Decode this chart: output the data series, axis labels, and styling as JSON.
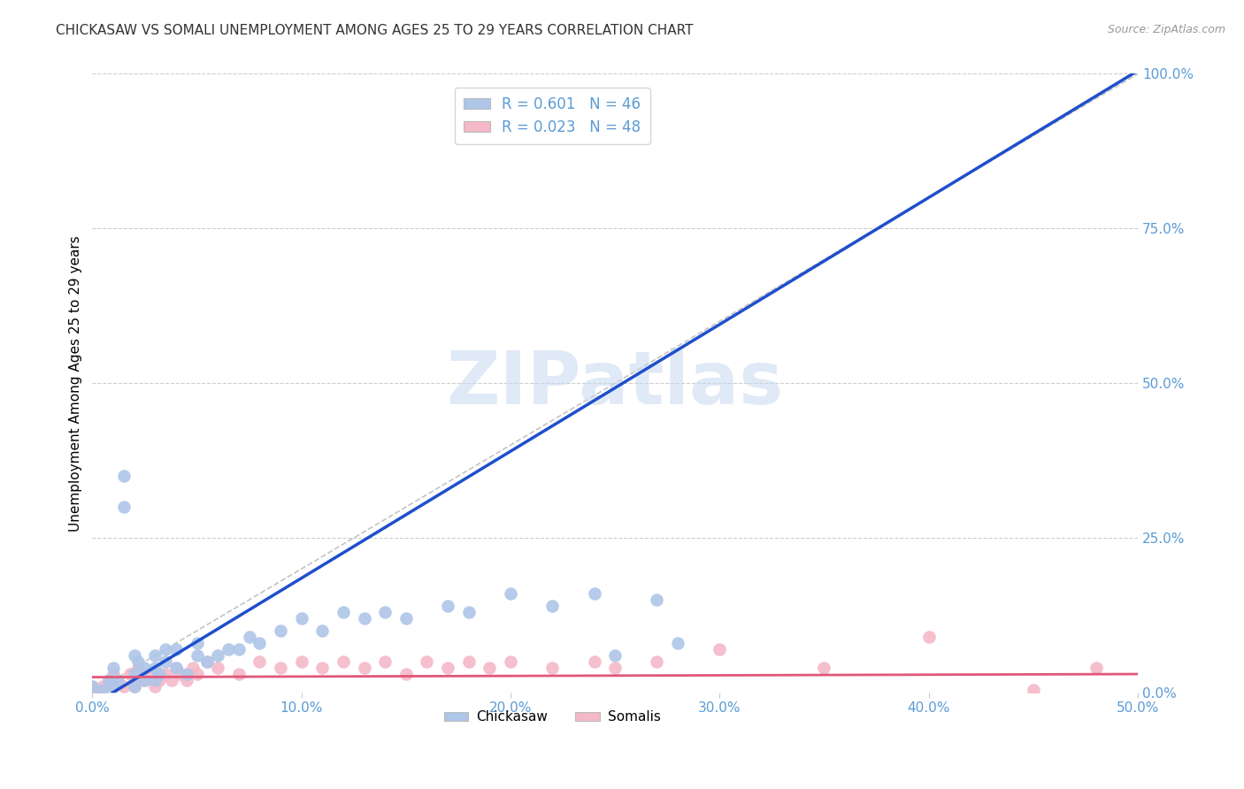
{
  "title": "CHICKASAW VS SOMALI UNEMPLOYMENT AMONG AGES 25 TO 29 YEARS CORRELATION CHART",
  "source": "Source: ZipAtlas.com",
  "tick_color": "#5b9bd5",
  "ylabel": "Unemployment Among Ages 25 to 29 years",
  "xlim": [
    0.0,
    0.5
  ],
  "ylim": [
    0.0,
    1.0
  ],
  "grid_color": "#cccccc",
  "background_color": "#ffffff",
  "diagonal_color": "#b0b0b0",
  "chickasaw_color": "#aec6e8",
  "somali_color": "#f4b8c8",
  "chickasaw_line_color": "#1f4fcc",
  "somali_line_color": "#e05878",
  "chickasaw_R": 0.601,
  "somali_R": 0.023,
  "chickasaw_N": 46,
  "somali_N": 48,
  "legend_label1": "Chickasaw",
  "legend_label2": "Somalis",
  "watermark_text": "ZIPatlas",
  "chickasaw_x": [
    0.0,
    0.005,
    0.008,
    0.01,
    0.01,
    0.012,
    0.015,
    0.015,
    0.02,
    0.02,
    0.02,
    0.022,
    0.025,
    0.025,
    0.03,
    0.03,
    0.03,
    0.032,
    0.035,
    0.035,
    0.04,
    0.04,
    0.045,
    0.05,
    0.05,
    0.055,
    0.06,
    0.065,
    0.07,
    0.075,
    0.08,
    0.09,
    0.1,
    0.11,
    0.12,
    0.13,
    0.14,
    0.15,
    0.17,
    0.18,
    0.2,
    0.22,
    0.24,
    0.25,
    0.27,
    0.28
  ],
  "chickasaw_y": [
    0.01,
    0.005,
    0.02,
    0.01,
    0.04,
    0.02,
    0.35,
    0.3,
    0.01,
    0.03,
    0.06,
    0.05,
    0.02,
    0.04,
    0.02,
    0.04,
    0.06,
    0.03,
    0.05,
    0.07,
    0.04,
    0.07,
    0.03,
    0.06,
    0.08,
    0.05,
    0.06,
    0.07,
    0.07,
    0.09,
    0.08,
    0.1,
    0.12,
    0.1,
    0.13,
    0.12,
    0.13,
    0.12,
    0.14,
    0.13,
    0.16,
    0.14,
    0.16,
    0.06,
    0.15,
    0.08
  ],
  "somali_x": [
    0.0,
    0.002,
    0.005,
    0.008,
    0.01,
    0.01,
    0.012,
    0.015,
    0.018,
    0.02,
    0.02,
    0.022,
    0.025,
    0.028,
    0.03,
    0.032,
    0.035,
    0.038,
    0.04,
    0.042,
    0.045,
    0.048,
    0.05,
    0.055,
    0.06,
    0.07,
    0.08,
    0.09,
    0.1,
    0.11,
    0.12,
    0.13,
    0.14,
    0.15,
    0.16,
    0.17,
    0.18,
    0.19,
    0.2,
    0.22,
    0.24,
    0.25,
    0.27,
    0.3,
    0.35,
    0.4,
    0.45,
    0.48
  ],
  "somali_y": [
    0.01,
    0.005,
    0.01,
    0.02,
    0.01,
    0.03,
    0.02,
    0.01,
    0.03,
    0.01,
    0.02,
    0.04,
    0.02,
    0.03,
    0.01,
    0.02,
    0.03,
    0.02,
    0.04,
    0.03,
    0.02,
    0.04,
    0.03,
    0.05,
    0.04,
    0.03,
    0.05,
    0.04,
    0.05,
    0.04,
    0.05,
    0.04,
    0.05,
    0.03,
    0.05,
    0.04,
    0.05,
    0.04,
    0.05,
    0.04,
    0.05,
    0.04,
    0.05,
    0.07,
    0.04,
    0.09,
    0.005,
    0.04
  ]
}
